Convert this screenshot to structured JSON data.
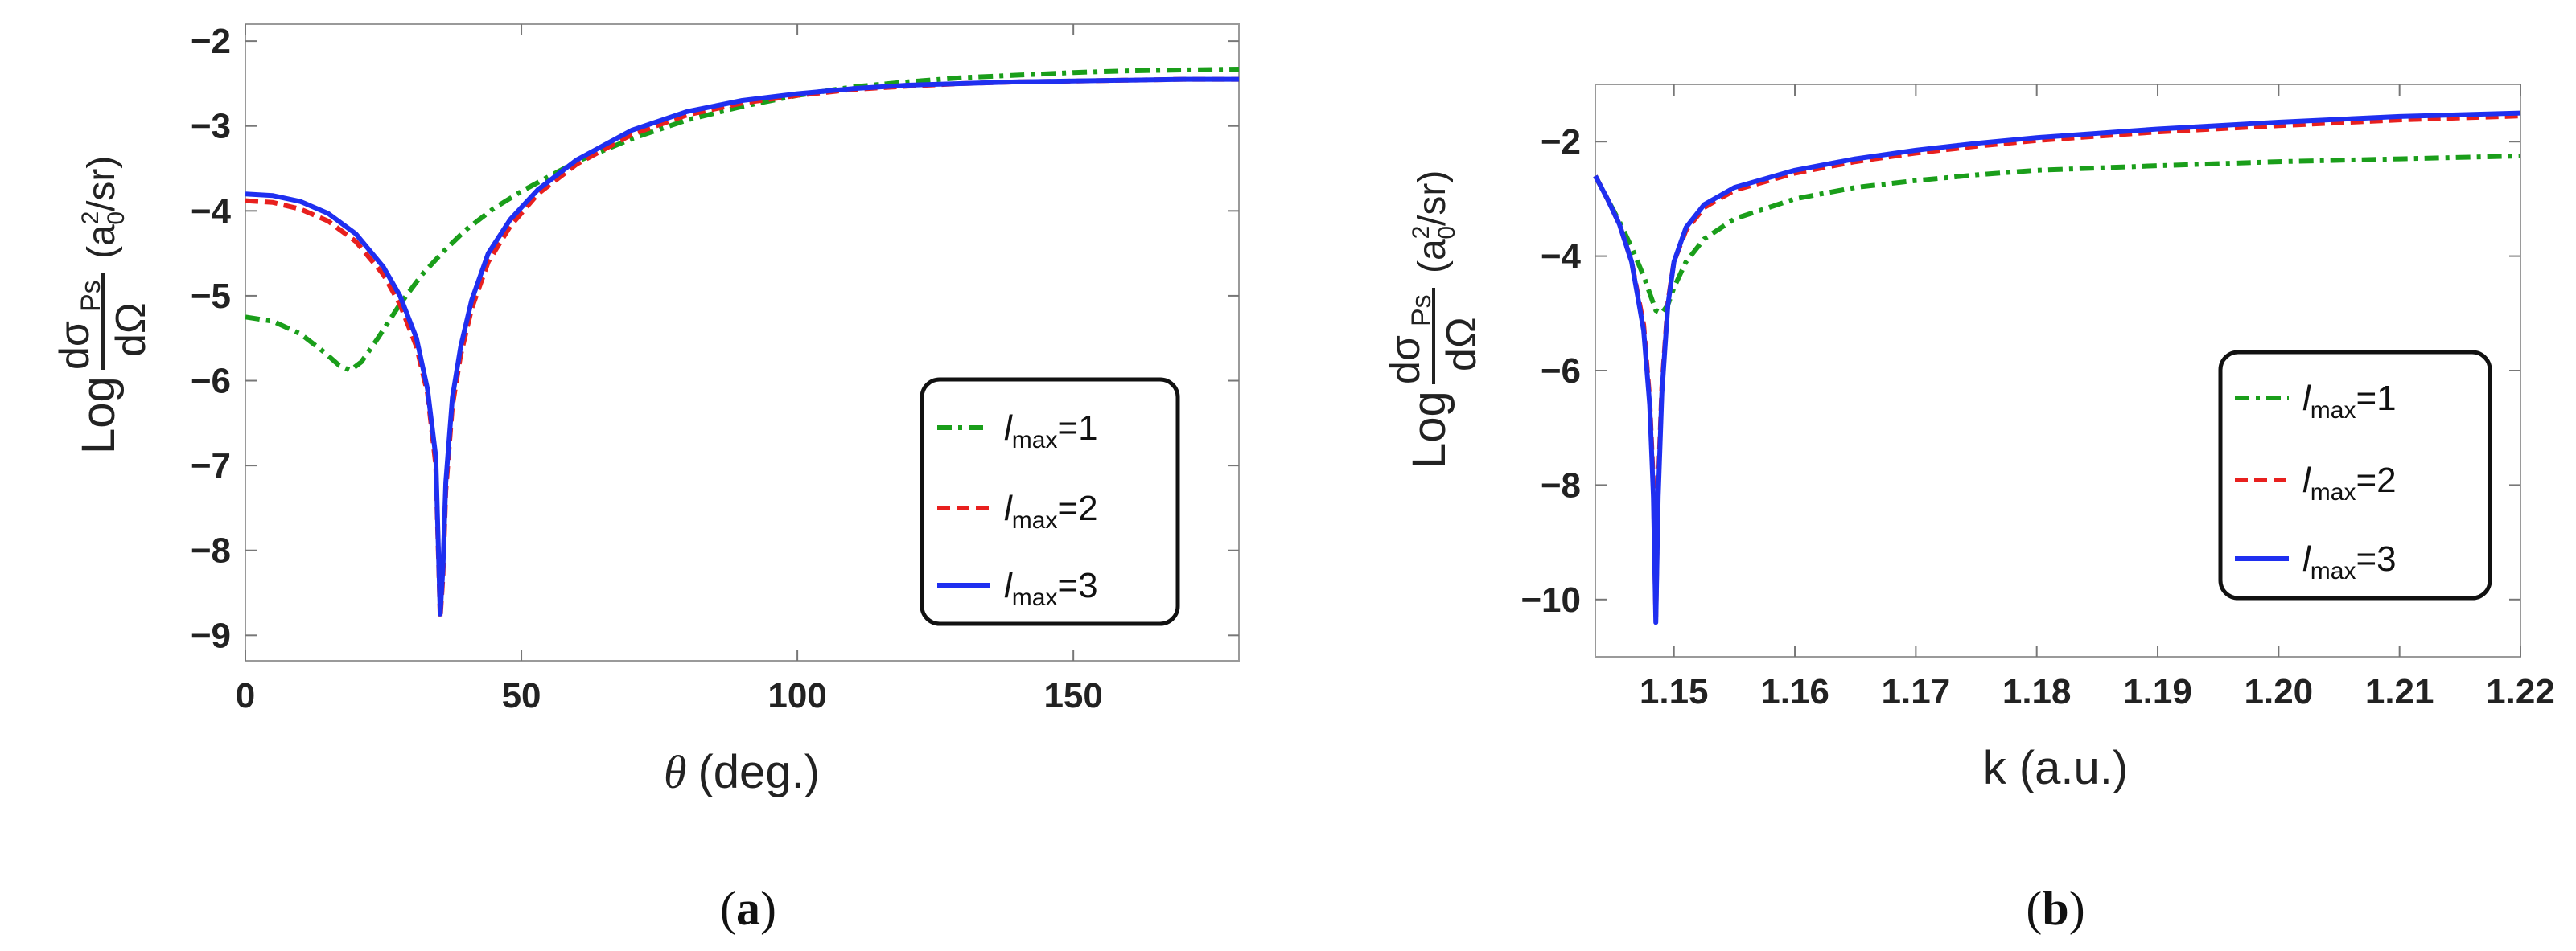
{
  "chart_data": [
    {
      "type": "line",
      "panel": "(a)",
      "xlabel_symbol": "θ",
      "xlabel_unit": "(deg.)",
      "ylabel": {
        "prefix": "Log",
        "numerator": "dσ",
        "numerator_sub": "Ps",
        "denominator": "dΩ",
        "unit_open": "(a",
        "unit_sup": "2",
        "unit_sub": "0",
        "unit_close": "/sr)"
      },
      "xlim": [
        0,
        180
      ],
      "ylim": [
        -9.3,
        -1.8
      ],
      "xticks": [
        0,
        50,
        100,
        150
      ],
      "yticks": [
        -9,
        -8,
        -7,
        -6,
        -5,
        -4,
        -3,
        -2
      ],
      "ytick_labels": [
        "−9",
        "−8",
        "−7",
        "−6",
        "−5",
        "−4",
        "−3",
        "−2"
      ],
      "legend_position": "lower-right",
      "series": [
        {
          "name": "l_max=1",
          "label_italic": "l",
          "label_sub": "max",
          "label_tail": "=1",
          "color": "#1a9e1a",
          "dash": "dashdot",
          "x": [
            0,
            5,
            10,
            14,
            17,
            19,
            21,
            24,
            28,
            32,
            36,
            40,
            45,
            50,
            60,
            70,
            80,
            90,
            100,
            110,
            120,
            130,
            140,
            150,
            160,
            170,
            180
          ],
          "y": [
            -5.25,
            -5.3,
            -5.45,
            -5.65,
            -5.82,
            -5.88,
            -5.78,
            -5.5,
            -5.1,
            -4.75,
            -4.47,
            -4.22,
            -3.97,
            -3.77,
            -3.42,
            -3.15,
            -2.93,
            -2.77,
            -2.64,
            -2.54,
            -2.48,
            -2.43,
            -2.4,
            -2.37,
            -2.35,
            -2.34,
            -2.33
          ]
        },
        {
          "name": "l_max=2",
          "label_italic": "l",
          "label_sub": "max",
          "label_tail": "=2",
          "color": "#e8201e",
          "dash": "dashed",
          "x": [
            0,
            5,
            10,
            15,
            20,
            25,
            28,
            31,
            33,
            34.5,
            35.3,
            35.8,
            36.3,
            37.5,
            39,
            41,
            44,
            48,
            53,
            60,
            70,
            80,
            90,
            100,
            110,
            120,
            130,
            140,
            150,
            160,
            170,
            180
          ],
          "y": [
            -3.88,
            -3.9,
            -3.98,
            -4.12,
            -4.36,
            -4.75,
            -5.1,
            -5.6,
            -6.15,
            -7.0,
            -8.8,
            -8.3,
            -7.3,
            -6.3,
            -5.7,
            -5.15,
            -4.6,
            -4.18,
            -3.8,
            -3.45,
            -3.1,
            -2.87,
            -2.73,
            -2.64,
            -2.57,
            -2.53,
            -2.5,
            -2.48,
            -2.47,
            -2.46,
            -2.45,
            -2.45
          ]
        },
        {
          "name": "l_max=3",
          "label_italic": "l",
          "label_sub": "max",
          "label_tail": "=3",
          "color": "#1f2ff0",
          "dash": "solid",
          "x": [
            0,
            5,
            10,
            15,
            20,
            25,
            28,
            31,
            33,
            34.5,
            35.3,
            35.8,
            36.3,
            37.5,
            39,
            41,
            44,
            48,
            53,
            60,
            70,
            80,
            90,
            100,
            110,
            120,
            130,
            140,
            150,
            160,
            170,
            180
          ],
          "y": [
            -3.8,
            -3.82,
            -3.89,
            -4.03,
            -4.27,
            -4.66,
            -5.0,
            -5.5,
            -6.1,
            -6.9,
            -8.75,
            -8.2,
            -7.2,
            -6.2,
            -5.6,
            -5.05,
            -4.5,
            -4.1,
            -3.75,
            -3.4,
            -3.05,
            -2.83,
            -2.7,
            -2.62,
            -2.56,
            -2.52,
            -2.5,
            -2.48,
            -2.47,
            -2.46,
            -2.45,
            -2.45
          ]
        }
      ]
    },
    {
      "type": "line",
      "panel": "(b)",
      "xlabel": "k (a.u.)",
      "ylabel": {
        "prefix": "Log",
        "numerator": "dσ",
        "numerator_sub": "Ps",
        "denominator": "dΩ",
        "unit_open": "(a",
        "unit_sup": "2",
        "unit_sub": "0",
        "unit_close": "/sr)"
      },
      "xlim": [
        1.1435,
        1.22
      ],
      "ylim": [
        -11,
        -1
      ],
      "xticks": [
        1.15,
        1.16,
        1.17,
        1.18,
        1.19,
        1.2,
        1.21,
        1.22
      ],
      "xtick_labels": [
        "1.15",
        "1.16",
        "1.17",
        "1.18",
        "1.19",
        "1.20",
        "1.21",
        "1.22"
      ],
      "yticks": [
        -10,
        -8,
        -6,
        -4,
        -2
      ],
      "ytick_labels": [
        "−10",
        "−8",
        "−6",
        "−4",
        "−2"
      ],
      "legend_position": "lower-right",
      "series": [
        {
          "name": "l_max=1",
          "label_italic": "l",
          "label_sub": "max",
          "label_tail": "=1",
          "color": "#1a9e1a",
          "dash": "dashdot",
          "x": [
            1.1435,
            1.1445,
            1.1455,
            1.1465,
            1.1475,
            1.1485,
            1.149,
            1.1495,
            1.15,
            1.151,
            1.1525,
            1.155,
            1.16,
            1.165,
            1.17,
            1.175,
            1.18,
            1.19,
            1.2,
            1.21,
            1.22
          ],
          "y": [
            -2.6,
            -3.0,
            -3.4,
            -3.85,
            -4.35,
            -4.95,
            -5.0,
            -4.85,
            -4.55,
            -4.1,
            -3.7,
            -3.35,
            -3.0,
            -2.8,
            -2.68,
            -2.58,
            -2.5,
            -2.42,
            -2.35,
            -2.3,
            -2.25
          ]
        },
        {
          "name": "l_max=2",
          "label_italic": "l",
          "label_sub": "max",
          "label_tail": "=2",
          "color": "#e8201e",
          "dash": "dashed",
          "x": [
            1.1435,
            1.1445,
            1.1455,
            1.1465,
            1.1475,
            1.148,
            1.1483,
            1.1485,
            1.1487,
            1.149,
            1.1495,
            1.15,
            1.151,
            1.1525,
            1.155,
            1.16,
            1.165,
            1.17,
            1.175,
            1.18,
            1.19,
            1.2,
            1.21,
            1.22
          ],
          "y": [
            -2.6,
            -3.0,
            -3.45,
            -4.1,
            -5.2,
            -6.5,
            -8.0,
            -10.3,
            -8.0,
            -6.3,
            -4.8,
            -4.1,
            -3.55,
            -3.15,
            -2.85,
            -2.55,
            -2.35,
            -2.2,
            -2.08,
            -1.98,
            -1.83,
            -1.72,
            -1.62,
            -1.55
          ]
        },
        {
          "name": "l_max=3",
          "label_italic": "l",
          "label_sub": "max",
          "label_tail": "=3",
          "color": "#1f2ff0",
          "dash": "solid",
          "x": [
            1.1435,
            1.1445,
            1.1455,
            1.1465,
            1.1475,
            1.148,
            1.1483,
            1.1485,
            1.1487,
            1.149,
            1.1495,
            1.15,
            1.151,
            1.1525,
            1.155,
            1.16,
            1.165,
            1.17,
            1.175,
            1.18,
            1.19,
            1.2,
            1.21,
            1.22
          ],
          "y": [
            -2.6,
            -3.0,
            -3.45,
            -4.1,
            -5.3,
            -6.6,
            -8.2,
            -10.4,
            -8.2,
            -6.4,
            -4.85,
            -4.1,
            -3.5,
            -3.1,
            -2.8,
            -2.5,
            -2.3,
            -2.15,
            -2.03,
            -1.93,
            -1.78,
            -1.66,
            -1.56,
            -1.5
          ]
        }
      ]
    }
  ]
}
